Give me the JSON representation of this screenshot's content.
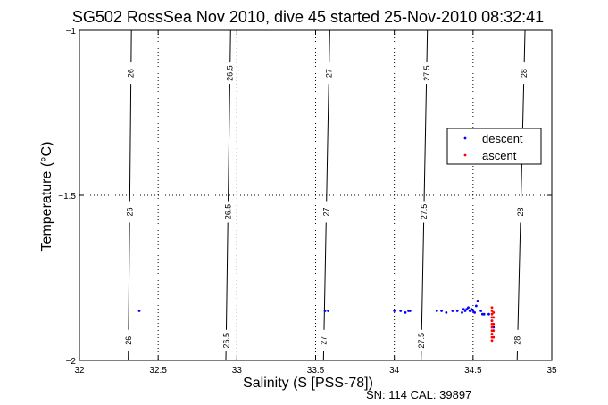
{
  "chart_data": {
    "type": "scatter",
    "title": "SG502 RossSea Nov 2010, dive 45 started 25-Nov-2010 08:32:41",
    "xlabel": "Salinity (S [PSS-78])",
    "ylabel": "Temperature (°C)",
    "xlim": [
      32,
      35
    ],
    "ylim": [
      -2,
      -1
    ],
    "x_ticks": [
      "32",
      "32.5",
      "33",
      "33.5",
      "34",
      "34.5",
      "35"
    ],
    "y_ticks": [
      "-1",
      "-1.5",
      "-2"
    ],
    "grid": "dotted",
    "legend_position": "upper-right",
    "footer": "SN: 114  CAL: 39897",
    "contours": [
      {
        "label": "26",
        "s_top": 32.33,
        "s_bottom": 32.31
      },
      {
        "label": "26.5",
        "s_top": 32.96,
        "s_bottom": 32.93
      },
      {
        "label": "27",
        "s_top": 33.59,
        "s_bottom": 33.55
      },
      {
        "label": "27.5",
        "s_top": 34.21,
        "s_bottom": 34.17
      },
      {
        "label": "28",
        "s_top": 34.83,
        "s_bottom": 34.78
      }
    ],
    "series": [
      {
        "name": "descent",
        "color": "#0000ff",
        "x": [
          32.38,
          33.56,
          33.58,
          34.0,
          34.04,
          34.07,
          34.09,
          34.1,
          34.27,
          34.3,
          34.33,
          34.37,
          34.4,
          34.43,
          34.44,
          34.45,
          34.46,
          34.47,
          34.48,
          34.49,
          34.5,
          34.51,
          34.52,
          34.53,
          34.55,
          34.56,
          34.57,
          34.6,
          34.62,
          34.63
        ],
        "y": [
          -1.85,
          -1.85,
          -1.85,
          -1.85,
          -1.85,
          -1.855,
          -1.85,
          -1.85,
          -1.85,
          -1.85,
          -1.855,
          -1.85,
          -1.85,
          -1.855,
          -1.845,
          -1.85,
          -1.845,
          -1.84,
          -1.85,
          -1.845,
          -1.85,
          -1.855,
          -1.835,
          -1.82,
          -1.85,
          -1.86,
          -1.86,
          -1.86,
          -1.88,
          -1.9
        ]
      },
      {
        "name": "ascent",
        "color": "#ff0000",
        "x": [
          34.62,
          34.62,
          34.62,
          34.62,
          34.62,
          34.62,
          34.62,
          34.62,
          34.62,
          34.62,
          34.62,
          34.63,
          34.63,
          34.63,
          34.63,
          34.63
        ],
        "y": [
          -1.84,
          -1.85,
          -1.86,
          -1.87,
          -1.88,
          -1.89,
          -1.9,
          -1.91,
          -1.92,
          -1.93,
          -1.94,
          -1.855,
          -1.87,
          -1.89,
          -1.91,
          -1.93
        ]
      }
    ]
  }
}
